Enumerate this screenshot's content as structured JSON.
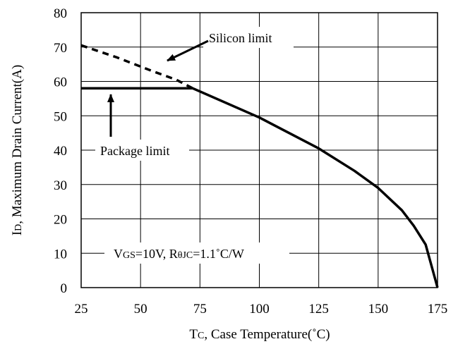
{
  "chart_data": {
    "type": "line",
    "xlim": [
      25,
      175
    ],
    "ylim": [
      0,
      80
    ],
    "xticks": [
      "25",
      "50",
      "75",
      "100",
      "125",
      "150",
      "175"
    ],
    "yticks": [
      "0",
      "10",
      "20",
      "30",
      "40",
      "50",
      "60",
      "70",
      "80"
    ],
    "grid": true,
    "xlabel": {
      "main": "T",
      "sub": "C",
      "rest": ", Case Temperature(˚C)"
    },
    "ylabel": {
      "main": "I",
      "sub": "D",
      "rest": ", Maximum Drain Current(A)"
    },
    "series": [
      {
        "style": "solid",
        "x": [
          25,
          72,
          100,
          125,
          140,
          150,
          160,
          165,
          170,
          175
        ],
        "y": [
          58,
          58,
          49.5,
          40.5,
          34,
          29,
          22.5,
          18,
          12.5,
          0
        ]
      },
      {
        "style": "dashed",
        "x": [
          25,
          40,
          55,
          65,
          72
        ],
        "y": [
          70.5,
          67,
          63,
          60.5,
          58
        ]
      }
    ],
    "annotations": [
      {
        "text": "Silicon limit"
      },
      {
        "text": "Package limit"
      },
      {
        "parts": [
          "V",
          "GS",
          "=10V, R",
          "θJC",
          "=1.1˚C/W"
        ]
      }
    ]
  }
}
